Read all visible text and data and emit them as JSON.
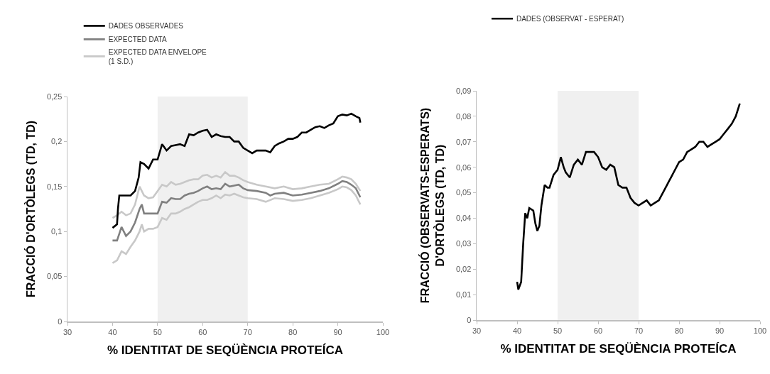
{
  "chart_data": [
    {
      "type": "line",
      "xlabel": "% IDENTITAT DE SEQÜÈNCIA PROTEÍCA",
      "ylabel": "FRACCIÓ D'ORTÒLEGS (TD, TD)",
      "legend": "top left",
      "grid": false,
      "marker": "none",
      "line_style": "solid",
      "xlim": [
        30,
        100
      ],
      "xticks": [
        30,
        40,
        50,
        60,
        70,
        80,
        90,
        100
      ],
      "ylim": [
        0,
        0.25
      ],
      "yticks": [
        0,
        {
          "value": 0.05,
          "label": "0,05"
        },
        {
          "value": 0.1,
          "label": "0,1"
        },
        {
          "value": 0.15,
          "label": "0,15"
        },
        {
          "value": 0.2,
          "label": "0,2"
        },
        {
          "value": 0.25,
          "label": "0,25"
        }
      ],
      "bands": [
        {
          "axis": "x",
          "from": 50,
          "to": 70,
          "color": "#f0f0f0"
        }
      ],
      "series": [
        {
          "name": "EXPECTED DATA ENVELOPE\n(1 S.D.)",
          "color": "#c8c8c8",
          "x": [
            40,
            41,
            42,
            43,
            44,
            45,
            46,
            47,
            48,
            49,
            50,
            51,
            52,
            53,
            54,
            55,
            56,
            57,
            58,
            59,
            60,
            61,
            62,
            63,
            64,
            65,
            66,
            67,
            68,
            69,
            70,
            72,
            74,
            76,
            78,
            80,
            82,
            84,
            86,
            88,
            90,
            91,
            92,
            93,
            94,
            95
          ],
          "values": [
            0.115,
            0.118,
            0.122,
            0.118,
            0.12,
            0.13,
            0.15,
            0.14,
            0.137,
            0.138,
            0.145,
            0.152,
            0.15,
            0.155,
            0.152,
            0.153,
            0.155,
            0.157,
            0.158,
            0.158,
            0.162,
            0.163,
            0.16,
            0.162,
            0.16,
            0.166,
            0.162,
            0.162,
            0.16,
            0.157,
            0.155,
            0.152,
            0.15,
            0.148,
            0.15,
            0.147,
            0.148,
            0.15,
            0.152,
            0.153,
            0.158,
            0.161,
            0.16,
            0.158,
            0.153,
            0.145
          ]
        },
        {
          "color": "#c8c8c8",
          "x": [
            40,
            41,
            42,
            43,
            44,
            45,
            46,
            46.5,
            47,
            48,
            49,
            50,
            51,
            52,
            53,
            54,
            55,
            56,
            57,
            58,
            59,
            60,
            61,
            62,
            63,
            64,
            65,
            66,
            67,
            68,
            69,
            70,
            72,
            74,
            76,
            78,
            80,
            82,
            84,
            86,
            88,
            90,
            91,
            92,
            93,
            94,
            95
          ],
          "values": [
            0.065,
            0.068,
            0.078,
            0.075,
            0.083,
            0.09,
            0.1,
            0.108,
            0.1,
            0.103,
            0.103,
            0.105,
            0.115,
            0.113,
            0.12,
            0.12,
            0.122,
            0.125,
            0.127,
            0.13,
            0.133,
            0.135,
            0.135,
            0.137,
            0.14,
            0.137,
            0.141,
            0.14,
            0.142,
            0.14,
            0.138,
            0.137,
            0.136,
            0.133,
            0.137,
            0.136,
            0.134,
            0.135,
            0.137,
            0.14,
            0.143,
            0.147,
            0.15,
            0.149,
            0.146,
            0.14,
            0.13
          ]
        },
        {
          "name": "EXPECTED DATA",
          "color": "#808080",
          "x": [
            40,
            41,
            42,
            43,
            44,
            45,
            46,
            46.5,
            47,
            49,
            50,
            51,
            52,
            53,
            54,
            55,
            56,
            57,
            58,
            59,
            60,
            61,
            62,
            63,
            64,
            65,
            66,
            67,
            68,
            69,
            70,
            72,
            74,
            75,
            76,
            78,
            80,
            82,
            84,
            86,
            88,
            90,
            91,
            92,
            93,
            94,
            95
          ],
          "values": [
            0.09,
            0.09,
            0.105,
            0.095,
            0.1,
            0.11,
            0.125,
            0.13,
            0.12,
            0.12,
            0.12,
            0.133,
            0.132,
            0.137,
            0.136,
            0.136,
            0.14,
            0.142,
            0.143,
            0.145,
            0.148,
            0.15,
            0.147,
            0.148,
            0.147,
            0.153,
            0.15,
            0.151,
            0.152,
            0.148,
            0.146,
            0.145,
            0.143,
            0.14,
            0.142,
            0.143,
            0.14,
            0.141,
            0.143,
            0.145,
            0.148,
            0.153,
            0.156,
            0.155,
            0.152,
            0.148,
            0.138
          ]
        },
        {
          "name": "DADES OBSERVADES",
          "color": "#000000",
          "x": [
            40,
            41,
            41.2,
            41.5,
            43,
            44,
            45,
            45.8,
            46.2,
            47,
            48,
            49,
            50,
            51,
            52,
            53,
            54,
            55,
            56,
            57,
            58,
            59,
            60,
            61,
            62,
            63,
            64,
            65,
            66,
            67,
            68,
            69,
            70,
            71,
            72,
            73,
            74,
            75,
            76,
            77,
            78,
            79,
            80,
            81,
            82,
            83,
            84,
            85,
            86,
            87,
            88,
            89,
            90,
            91,
            92,
            93,
            94,
            94.8,
            95
          ],
          "values": [
            0.104,
            0.108,
            0.125,
            0.14,
            0.14,
            0.14,
            0.145,
            0.16,
            0.177,
            0.175,
            0.17,
            0.18,
            0.18,
            0.197,
            0.19,
            0.195,
            0.196,
            0.197,
            0.195,
            0.208,
            0.207,
            0.21,
            0.212,
            0.213,
            0.205,
            0.208,
            0.206,
            0.205,
            0.205,
            0.2,
            0.2,
            0.193,
            0.19,
            0.187,
            0.19,
            0.19,
            0.19,
            0.188,
            0.195,
            0.198,
            0.2,
            0.203,
            0.203,
            0.205,
            0.21,
            0.21,
            0.213,
            0.216,
            0.217,
            0.215,
            0.218,
            0.22,
            0.228,
            0.23,
            0.229,
            0.231,
            0.228,
            0.226,
            0.221
          ]
        }
      ]
    },
    {
      "type": "line",
      "xlabel": "% IDENTITAT DE SEQÜÈNCIA PROTEÍCA",
      "ylabel": "FRACCIÓ (OBSERVATS-ESPERATS)\nD'ORTÒLEGS (TD, TD)",
      "legend": "top left",
      "grid": false,
      "marker": "none",
      "line_style": "solid",
      "xlim": [
        30,
        100
      ],
      "xticks": [
        30,
        40,
        50,
        60,
        70,
        80,
        90,
        100
      ],
      "ylim": [
        0,
        0.09
      ],
      "yticks": [
        0,
        {
          "value": 0.01,
          "label": "0,01"
        },
        {
          "value": 0.02,
          "label": "0,02"
        },
        {
          "value": 0.03,
          "label": "0,03"
        },
        {
          "value": 0.04,
          "label": "0,04"
        },
        {
          "value": 0.05,
          "label": "0,05"
        },
        {
          "value": 0.06,
          "label": "0,06"
        },
        {
          "value": 0.07,
          "label": "0,07"
        },
        {
          "value": 0.08,
          "label": "0,08"
        },
        {
          "value": 0.09,
          "label": "0,09"
        }
      ],
      "bands": [
        {
          "axis": "x",
          "from": 50,
          "to": 70,
          "color": "#f0f0f0"
        }
      ],
      "series": [
        {
          "name": "DADES (OBSERVAT - ESPERAT)",
          "color": "#000000",
          "x": [
            40,
            40.3,
            41,
            41.5,
            42,
            42.5,
            43,
            44,
            44.5,
            45,
            45.5,
            46,
            46.8,
            47.5,
            48,
            49,
            50,
            50.8,
            51.5,
            52,
            53,
            54,
            55,
            56,
            57,
            58,
            59,
            60,
            61,
            62,
            63,
            64,
            65,
            66,
            67,
            68,
            69,
            70,
            71,
            72,
            73,
            74,
            75,
            76,
            77,
            78,
            79,
            80,
            81,
            82,
            83,
            84,
            85,
            86,
            87,
            88,
            89,
            90,
            91,
            92,
            93,
            94,
            95
          ],
          "values": [
            0.015,
            0.012,
            0.015,
            0.03,
            0.042,
            0.04,
            0.044,
            0.043,
            0.038,
            0.035,
            0.037,
            0.045,
            0.053,
            0.052,
            0.052,
            0.057,
            0.059,
            0.064,
            0.06,
            0.058,
            0.056,
            0.061,
            0.063,
            0.061,
            0.066,
            0.066,
            0.066,
            0.064,
            0.06,
            0.059,
            0.061,
            0.06,
            0.053,
            0.052,
            0.052,
            0.048,
            0.046,
            0.045,
            0.046,
            0.047,
            0.045,
            0.046,
            0.047,
            0.05,
            0.053,
            0.056,
            0.059,
            0.062,
            0.063,
            0.066,
            0.067,
            0.068,
            0.07,
            0.07,
            0.068,
            0.069,
            0.07,
            0.071,
            0.073,
            0.075,
            0.077,
            0.08,
            0.085
          ]
        }
      ]
    }
  ]
}
